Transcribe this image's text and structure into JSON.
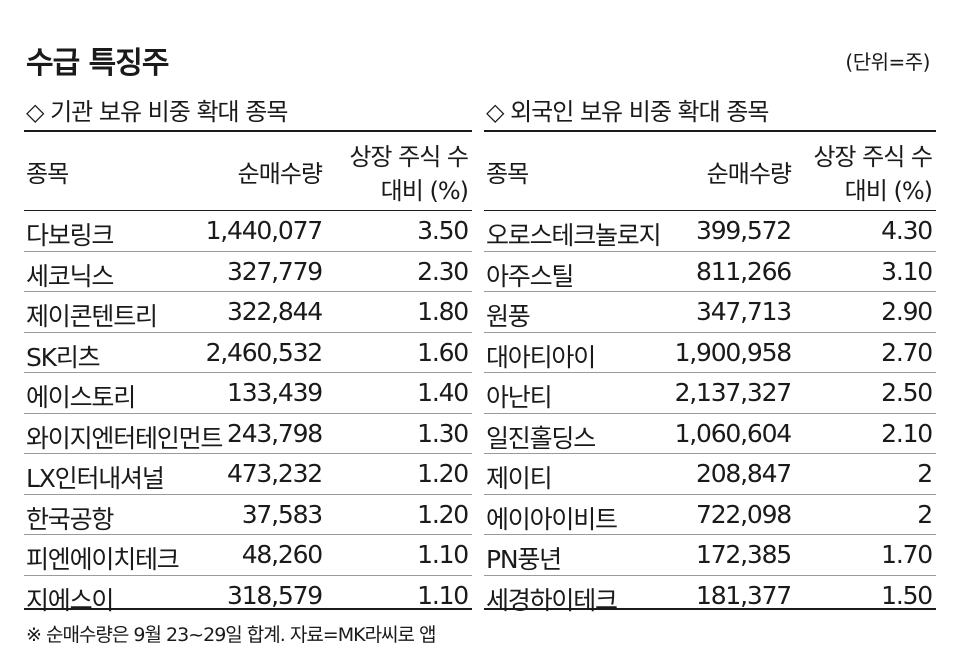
{
  "title": "수급 특징주",
  "unit": "(단위=주)",
  "institutional": {
    "section_title": "◇ 기관 보유 비중 확대 종목",
    "headers": {
      "name": "종목",
      "net_buy": "순매수량",
      "ratio_line1": "상장 주식 수",
      "ratio_line2": "대비 (%)"
    },
    "rows": [
      {
        "name": "다보링크",
        "net_buy": "1,440,077",
        "ratio": "3.50"
      },
      {
        "name": "세코닉스",
        "net_buy": "327,779",
        "ratio": "2.30"
      },
      {
        "name": "제이콘텐트리",
        "net_buy": "322,844",
        "ratio": "1.80"
      },
      {
        "name": "SK리츠",
        "net_buy": "2,460,532",
        "ratio": "1.60"
      },
      {
        "name": "에이스토리",
        "net_buy": "133,439",
        "ratio": "1.40"
      },
      {
        "name": "와이지엔터테인먼트",
        "net_buy": "243,798",
        "ratio": "1.30"
      },
      {
        "name": "LX인터내셔널",
        "net_buy": "473,232",
        "ratio": "1.20"
      },
      {
        "name": "한국공항",
        "net_buy": "37,583",
        "ratio": "1.20"
      },
      {
        "name": "피엔에이치테크",
        "net_buy": "48,260",
        "ratio": "1.10"
      },
      {
        "name": "지에스이",
        "net_buy": "318,579",
        "ratio": "1.10"
      }
    ]
  },
  "foreign": {
    "section_title": "◇ 외국인 보유 비중 확대 종목",
    "headers": {
      "name": "종목",
      "net_buy": "순매수량",
      "ratio_line1": "상장 주식 수",
      "ratio_line2": "대비 (%)"
    },
    "rows": [
      {
        "name": "오로스테크놀로지",
        "net_buy": "399,572",
        "ratio": "4.30"
      },
      {
        "name": "아주스틸",
        "net_buy": "811,266",
        "ratio": "3.10"
      },
      {
        "name": "원풍",
        "net_buy": "347,713",
        "ratio": "2.90"
      },
      {
        "name": "대아티아이",
        "net_buy": "1,900,958",
        "ratio": "2.70"
      },
      {
        "name": "아난티",
        "net_buy": "2,137,327",
        "ratio": "2.50"
      },
      {
        "name": "일진홀딩스",
        "net_buy": "1,060,604",
        "ratio": "2.10"
      },
      {
        "name": "제이티",
        "net_buy": "208,847",
        "ratio": "2"
      },
      {
        "name": "에이아이비트",
        "net_buy": "722,098",
        "ratio": "2"
      },
      {
        "name": "PN풍년",
        "net_buy": "172,385",
        "ratio": "1.70"
      },
      {
        "name": "세경하이테크",
        "net_buy": "181,377",
        "ratio": "1.50"
      }
    ]
  },
  "footnote": "※ 순매수량은 9월 23~29일 합계. 자료=MK라씨로 앱"
}
